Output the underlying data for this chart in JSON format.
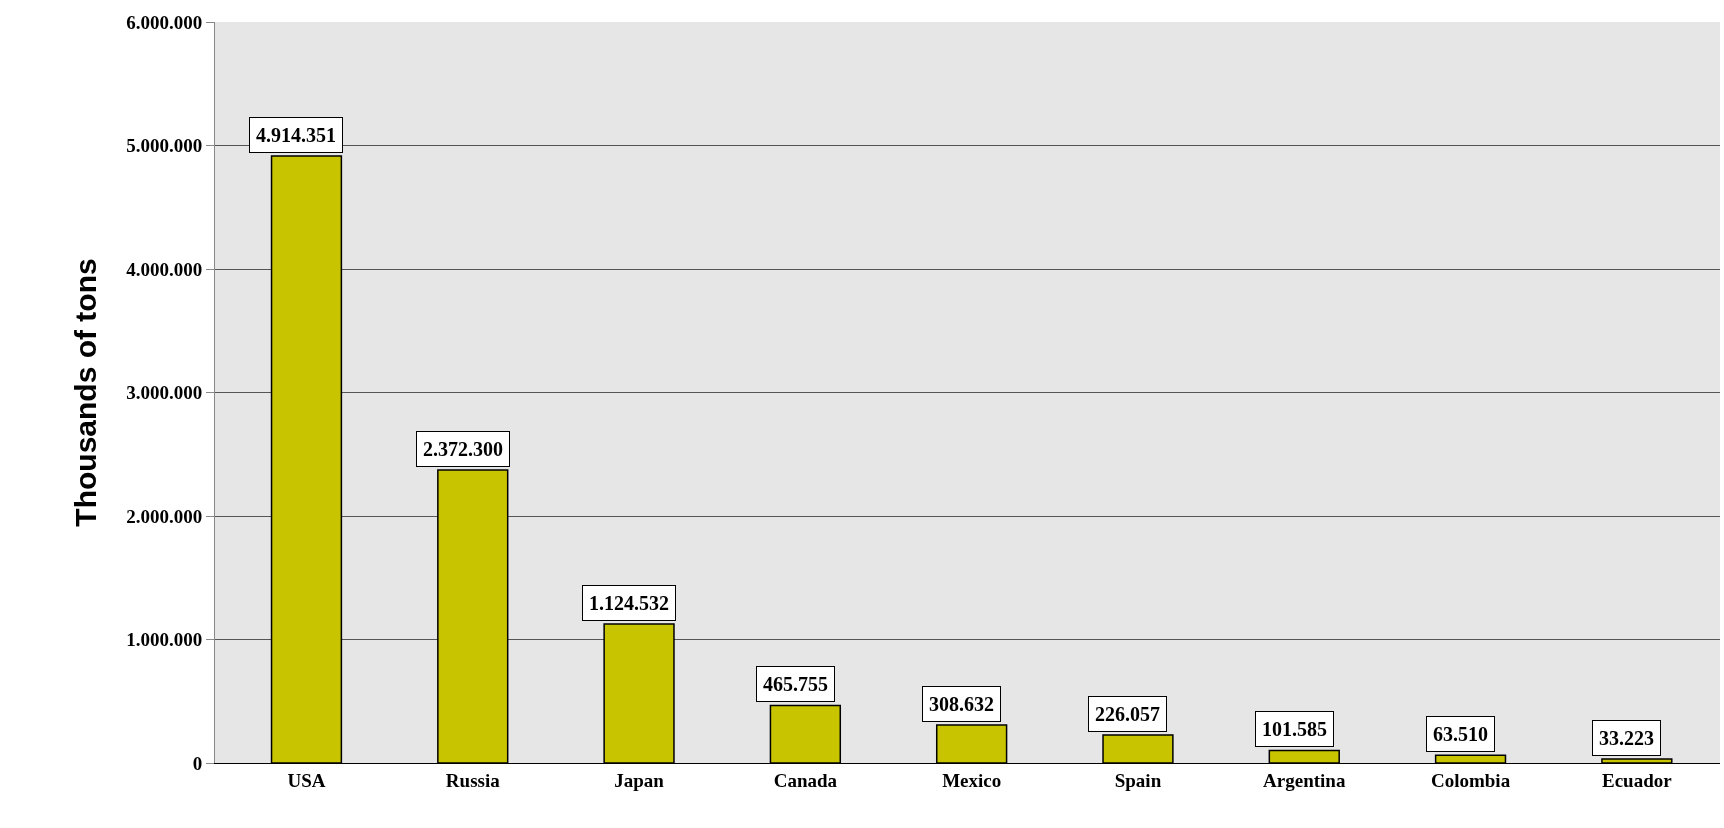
{
  "chart_data": {
    "type": "bar",
    "ylabel": "Thousands of tons",
    "categories": [
      "USA",
      "Russia",
      "Japan",
      "Canada",
      "Mexico",
      "Spain",
      "Argentina",
      "Colombia",
      "Ecuador"
    ],
    "values": [
      4914351,
      2372300,
      1124532,
      465755,
      308632,
      226057,
      101585,
      63510,
      33223
    ],
    "value_labels": [
      "4.914.351",
      "2.372.300",
      "1.124.532",
      "465.755",
      "308.632",
      "226.057",
      "101.585",
      "63.510",
      "33.223"
    ],
    "color": "#c9c400",
    "ylim": [
      0,
      6000000
    ],
    "yticks": [
      {
        "value": 0,
        "label": "0"
      },
      {
        "value": 1000000,
        "label": "1.000.000"
      },
      {
        "value": 2000000,
        "label": "2.000.000"
      },
      {
        "value": 3000000,
        "label": "3.000.000"
      },
      {
        "value": 4000000,
        "label": "4.000.000"
      },
      {
        "value": 5000000,
        "label": "5.000.000"
      },
      {
        "value": 6000000,
        "label": "6.000.000"
      }
    ],
    "grid": "y",
    "legend": false
  }
}
